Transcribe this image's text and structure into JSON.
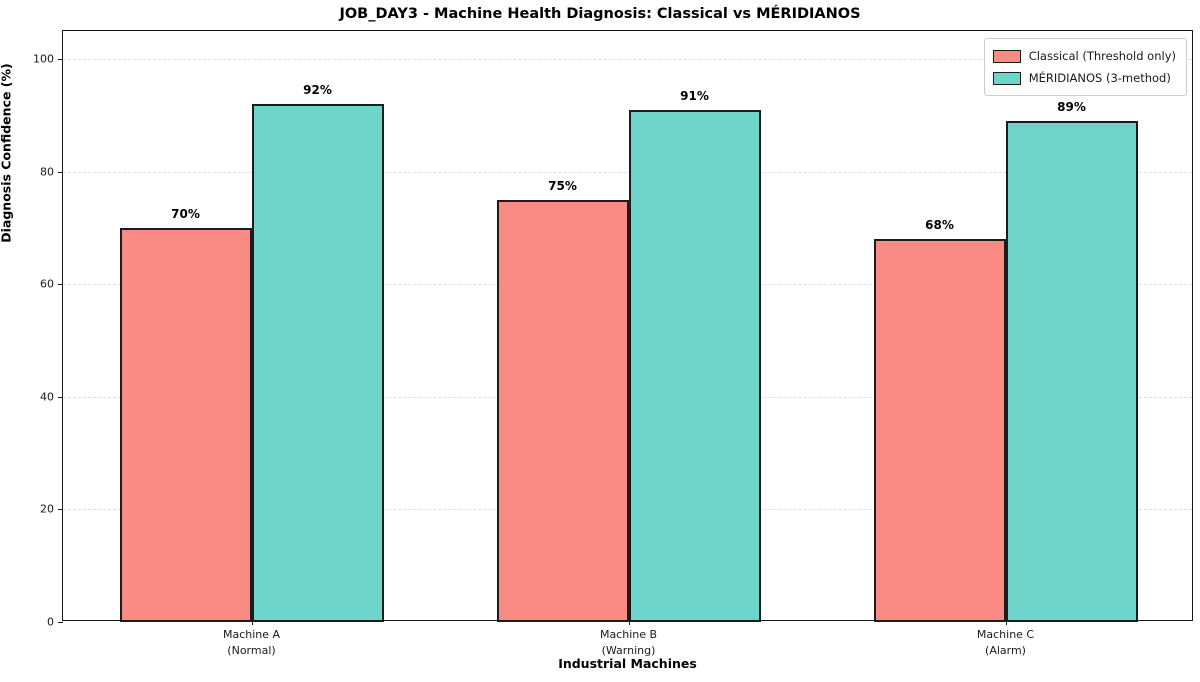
{
  "title": "JOB_DAY3 - Machine Health Diagnosis: Classical vs MÉRIDIANOS",
  "chart_data": {
    "type": "bar",
    "title": "JOB_DAY3 - Machine Health Diagnosis: Classical vs MÉRIDIANOS",
    "xlabel": "Industrial Machines",
    "ylabel": "Diagnosis Confidence (%)",
    "ylim": [
      0,
      105
    ],
    "yticks": [
      0,
      20,
      40,
      60,
      80,
      100
    ],
    "grid": "horizontal-dashed",
    "legend_position": "upper right",
    "categories": [
      "Machine A\n(Normal)",
      "Machine B\n(Warning)",
      "Machine C\n(Alarm)"
    ],
    "series": [
      {
        "name": "Classical (Threshold only)",
        "color": "#FA8B84",
        "edge_color": "#1c1c1c",
        "values": [
          70,
          75,
          68
        ],
        "value_labels": [
          "70%",
          "75%",
          "68%"
        ]
      },
      {
        "name": "MÉRIDIANOS (3-method)",
        "color": "#6FD5CB",
        "edge_color": "#1c1c1c",
        "values": [
          92,
          91,
          89
        ],
        "value_labels": [
          "92%",
          "91%",
          "89%"
        ]
      }
    ]
  }
}
